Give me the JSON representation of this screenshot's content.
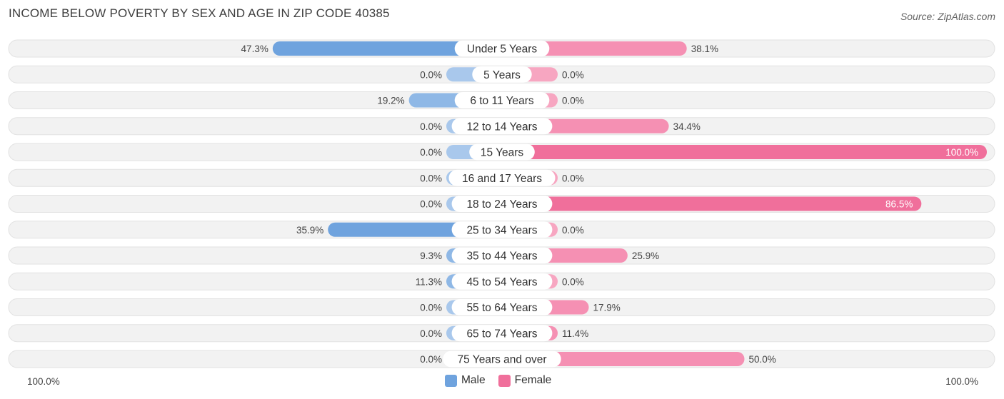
{
  "title": "INCOME BELOW POVERTY BY SEX AND AGE IN ZIP CODE 40385",
  "source": "Source: ZipAtlas.com",
  "axis": {
    "left_label": "100.0%",
    "right_label": "100.0%"
  },
  "legend": [
    {
      "name": "Male",
      "color": "#6fa3de"
    },
    {
      "name": "Female",
      "color": "#f06f9b"
    }
  ],
  "colors": {
    "male_strong": "#6fa3de",
    "male_light": "#a9c8ec",
    "female_strong": "#f06f9b",
    "female_light": "#f7a6c1"
  },
  "chart_data": {
    "type": "bar",
    "orientation": "horizontal-diverging",
    "title": "INCOME BELOW POVERTY BY SEX AND AGE IN ZIP CODE 40385",
    "xlim": [
      -100,
      100
    ],
    "categories": [
      "Under 5 Years",
      "5 Years",
      "6 to 11 Years",
      "12 to 14 Years",
      "15 Years",
      "16 and 17 Years",
      "18 to 24 Years",
      "25 to 34 Years",
      "35 to 44 Years",
      "45 to 54 Years",
      "55 to 64 Years",
      "65 to 74 Years",
      "75 Years and over"
    ],
    "series": [
      {
        "name": "Male",
        "values": [
          47.3,
          0.0,
          19.2,
          0.0,
          0.0,
          0.0,
          0.0,
          35.9,
          9.3,
          11.3,
          0.0,
          0.0,
          0.0
        ],
        "labels": [
          "47.3%",
          "0.0%",
          "19.2%",
          "0.0%",
          "0.0%",
          "0.0%",
          "0.0%",
          "35.9%",
          "9.3%",
          "11.3%",
          "0.0%",
          "0.0%",
          "0.0%"
        ]
      },
      {
        "name": "Female",
        "values": [
          38.1,
          0.0,
          0.0,
          34.4,
          100.0,
          0.0,
          86.5,
          0.0,
          25.9,
          0.0,
          17.9,
          11.4,
          50.0
        ],
        "labels": [
          "38.1%",
          "0.0%",
          "0.0%",
          "34.4%",
          "100.0%",
          "0.0%",
          "86.5%",
          "0.0%",
          "25.9%",
          "0.0%",
          "17.9%",
          "11.4%",
          "50.0%"
        ]
      }
    ]
  }
}
